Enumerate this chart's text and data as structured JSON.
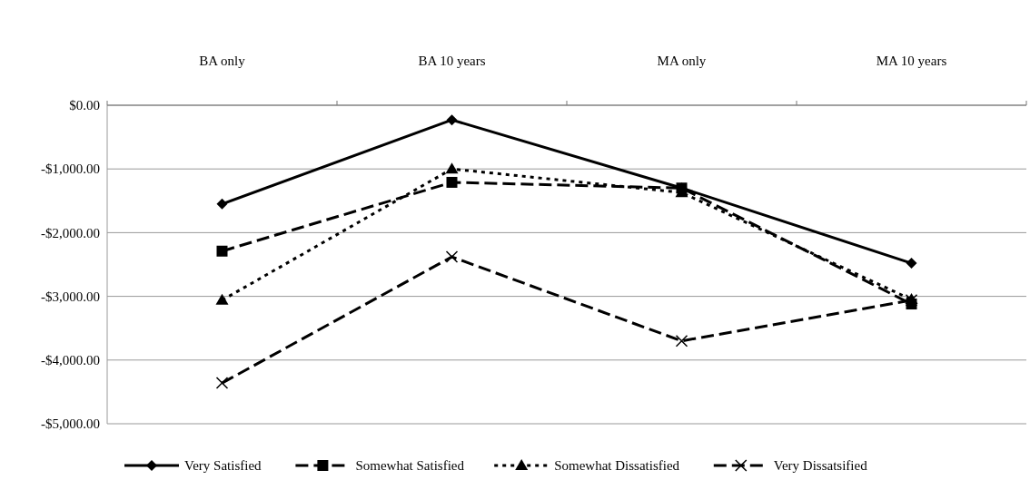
{
  "chart_data": {
    "type": "line",
    "categories": [
      "BA only",
      "BA 10 years",
      "MA only",
      "MA 10 years"
    ],
    "series": [
      {
        "name": "Very Satisfied",
        "color": "#000000",
        "marker": "diamond",
        "line_style": "solid",
        "values": [
          -1550,
          -230,
          -1300,
          -2480
        ]
      },
      {
        "name": "Somewhat Satisfied",
        "color": "#000000",
        "marker": "square",
        "line_style": "dashed",
        "values": [
          -2290,
          -1210,
          -1300,
          -3120
        ]
      },
      {
        "name": "Somewhat Dissatisfied",
        "color": "#000000",
        "marker": "triangle",
        "line_style": "dotted",
        "values": [
          -3060,
          -1000,
          -1370,
          -3050
        ]
      },
      {
        "name": "Very Dissatsified",
        "color": "#000000",
        "marker": "cross",
        "line_style": "dashed",
        "values": [
          -4360,
          -2380,
          -3700,
          -3060
        ]
      }
    ],
    "ylim": [
      -5000,
      0
    ],
    "yticks": [
      {
        "value": 0,
        "label": "$0.00"
      },
      {
        "value": -1000,
        "label": "-$1,000.00"
      },
      {
        "value": -2000,
        "label": "-$2,000.00"
      },
      {
        "value": -3000,
        "label": "-$3,000.00"
      },
      {
        "value": -4000,
        "label": "-$4,000.00"
      },
      {
        "value": -5000,
        "label": "-$5,000.00"
      }
    ],
    "grid": "y",
    "legend": "bottom"
  }
}
